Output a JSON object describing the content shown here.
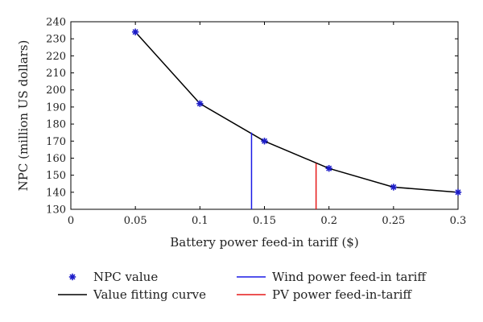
{
  "chart_data": {
    "type": "line",
    "xlabel": "Battery power feed-in tariff ($)",
    "ylabel": "NPC (million US dollars)",
    "xlim": [
      0,
      0.3
    ],
    "ylim": [
      130,
      240
    ],
    "x_ticks": [
      0,
      0.05,
      0.1,
      0.15,
      0.2,
      0.25,
      0.3
    ],
    "x_tick_labels": [
      "0",
      "0.05",
      "0.1",
      "0.15",
      "0.2",
      "0.25",
      "0.3"
    ],
    "y_ticks": [
      130,
      140,
      150,
      160,
      170,
      180,
      190,
      200,
      210,
      220,
      230,
      240
    ],
    "y_tick_labels": [
      "130",
      "140",
      "150",
      "160",
      "170",
      "180",
      "190",
      "200",
      "210",
      "220",
      "230",
      "240"
    ],
    "grid": false,
    "legend_position": "below",
    "series": [
      {
        "name": "NPC value",
        "kind": "scatter",
        "marker": "asterisk",
        "color": "#1c1cc8",
        "x": [
          0.05,
          0.1,
          0.15,
          0.2,
          0.25,
          0.3
        ],
        "y": [
          234,
          192,
          170,
          154,
          143,
          140
        ]
      },
      {
        "name": "Value fitting curve",
        "kind": "line",
        "color": "#000000",
        "x": [
          0.05,
          0.1,
          0.15,
          0.2,
          0.25,
          0.3
        ],
        "y": [
          234,
          192,
          170,
          154,
          143,
          140
        ]
      },
      {
        "name": "Wind power feed-in tariff",
        "kind": "vline",
        "color": "#1a1ae6",
        "x": 0.14,
        "y": [
          130,
          175
        ]
      },
      {
        "name": "PV power feed-in-tariff",
        "kind": "vline",
        "color": "#e61a1a",
        "x": 0.19,
        "y": [
          130,
          157
        ]
      }
    ]
  }
}
